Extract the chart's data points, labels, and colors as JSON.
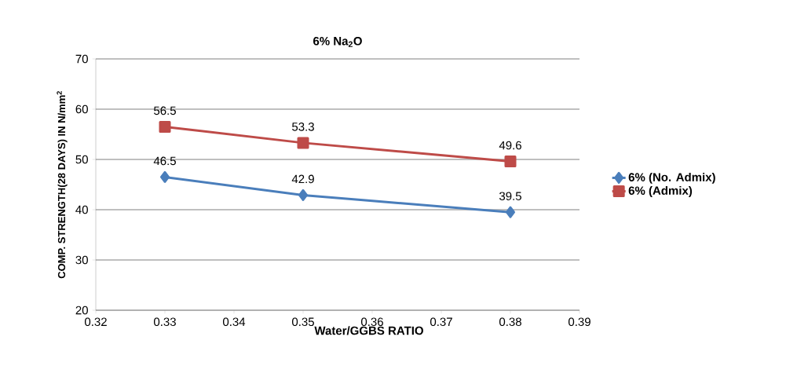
{
  "chart_data": {
    "type": "line",
    "title": "6% Na$_{2}$O",
    "xlabel": "Water/GGBS   RATIO",
    "ylabel": "COMP. STRENGTH(28 DAYS)  IN  N/mm$^{2}$",
    "x": [
      0.33,
      0.35,
      0.38
    ],
    "series": [
      {
        "name": "6% (No. Admix)",
        "color": "#4a7ebb",
        "marker": "diamond",
        "values": [
          46.5,
          42.9,
          39.5
        ]
      },
      {
        "name": "6% (Admix)",
        "color": "#be4b48",
        "marker": "square",
        "values": [
          56.5,
          53.3,
          49.6
        ]
      }
    ],
    "xlim": [
      0.32,
      0.39
    ],
    "xticks": [
      0.32,
      0.33,
      0.34,
      0.35,
      0.36,
      0.37,
      0.38,
      0.39
    ],
    "ylim": [
      20,
      70
    ],
    "yticks": [
      20,
      30,
      40,
      50,
      60,
      70
    ],
    "grid": "y",
    "legend": "right",
    "data_labels": true,
    "line_style": "solid"
  }
}
